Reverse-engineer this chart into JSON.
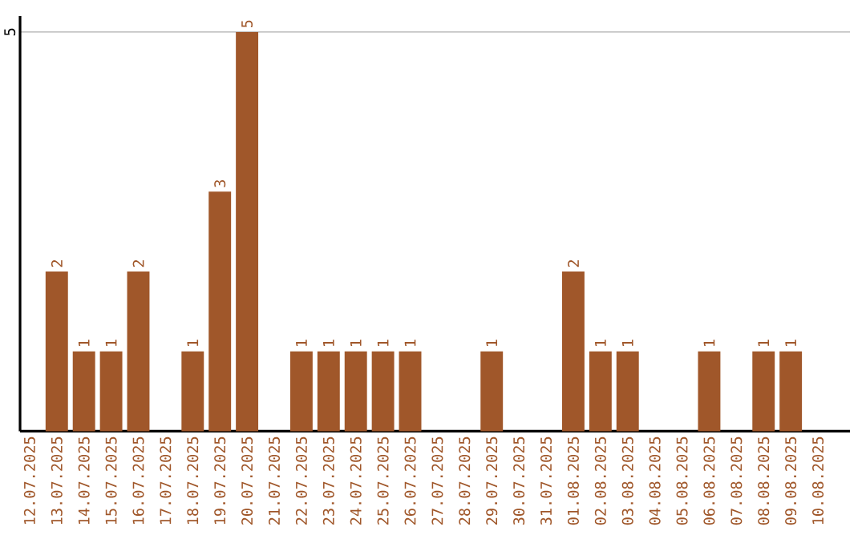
{
  "chart_data": {
    "type": "bar",
    "categories": [
      "12.07.2025",
      "13.07.2025",
      "14.07.2025",
      "15.07.2025",
      "16.07.2025",
      "17.07.2025",
      "18.07.2025",
      "19.07.2025",
      "20.07.2025",
      "21.07.2025",
      "22.07.2025",
      "23.07.2025",
      "24.07.2025",
      "25.07.2025",
      "26.07.2025",
      "27.07.2025",
      "28.07.2025",
      "29.07.2025",
      "30.07.2025",
      "31.07.2025",
      "01.08.2025",
      "02.08.2025",
      "03.08.2025",
      "04.08.2025",
      "05.08.2025",
      "06.08.2025",
      "07.08.2025",
      "08.08.2025",
      "09.08.2025",
      "10.08.2025"
    ],
    "values": [
      0,
      2,
      1,
      1,
      2,
      0,
      1,
      3,
      5,
      0,
      1,
      1,
      1,
      1,
      1,
      0,
      0,
      1,
      0,
      0,
      2,
      1,
      1,
      0,
      0,
      1,
      0,
      1,
      1,
      0
    ],
    "value_labels": [
      null,
      "2",
      "1",
      "1",
      "2",
      null,
      "1",
      "3",
      "5",
      null,
      "1",
      "1",
      "1",
      "1",
      "1",
      null,
      null,
      "1",
      null,
      null,
      "2",
      "1",
      "1",
      null,
      null,
      "1",
      null,
      "1",
      "1",
      null
    ],
    "color": "#a0572a",
    "ylim": [
      0,
      5.2
    ],
    "yticks": [
      5
    ],
    "grid": "y"
  }
}
